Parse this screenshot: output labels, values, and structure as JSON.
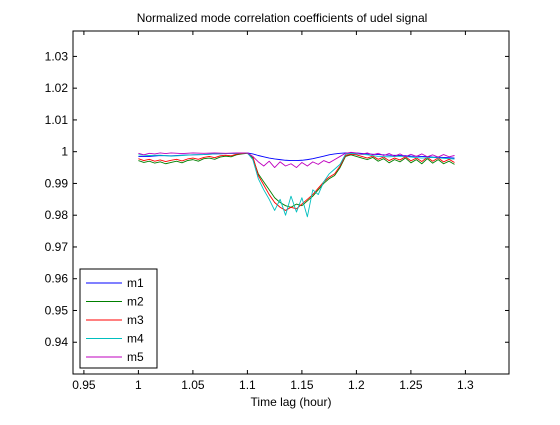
{
  "chart_data": {
    "type": "line",
    "title": "Normalized mode correlation coefficients of udel signal",
    "xlabel": "Time lag (hour)",
    "ylabel": "",
    "xlim": [
      0.94,
      1.34
    ],
    "ylim": [
      0.93,
      1.038
    ],
    "xticks": [
      0.95,
      1,
      1.05,
      1.1,
      1.15,
      1.2,
      1.25,
      1.3
    ],
    "xtick_labels": [
      "0.95",
      "1",
      "1.05",
      "1.1",
      "1.15",
      "1.2",
      "1.25",
      "1.3"
    ],
    "yticks": [
      0.94,
      0.95,
      0.96,
      0.97,
      0.98,
      0.99,
      1,
      1.01,
      1.02,
      1.03
    ],
    "ytick_labels": [
      "0.94",
      "0.95",
      "0.96",
      "0.97",
      "0.98",
      "0.99",
      "1",
      "1.01",
      "1.02",
      "1.03"
    ],
    "grid": false,
    "legend_position": "bottom-left",
    "series": [
      {
        "name": "m1",
        "color": "#0000ff",
        "points": [
          [
            1.0,
            0.9985
          ],
          [
            1.01,
            0.9985
          ],
          [
            1.02,
            0.9988
          ],
          [
            1.03,
            0.9987
          ],
          [
            1.04,
            0.9989
          ],
          [
            1.05,
            0.999
          ],
          [
            1.06,
            0.9991
          ],
          [
            1.07,
            0.9993
          ],
          [
            1.08,
            0.9994
          ],
          [
            1.09,
            0.9995
          ],
          [
            1.1,
            0.9996
          ],
          [
            1.105,
            0.9993
          ],
          [
            1.11,
            0.9988
          ],
          [
            1.115,
            0.9984
          ],
          [
            1.12,
            0.998
          ],
          [
            1.125,
            0.9977
          ],
          [
            1.13,
            0.9975
          ],
          [
            1.135,
            0.9973
          ],
          [
            1.14,
            0.9972
          ],
          [
            1.145,
            0.9972
          ],
          [
            1.15,
            0.9973
          ],
          [
            1.155,
            0.9975
          ],
          [
            1.16,
            0.9978
          ],
          [
            1.165,
            0.9982
          ],
          [
            1.17,
            0.9986
          ],
          [
            1.175,
            0.999
          ],
          [
            1.18,
            0.9993
          ],
          [
            1.185,
            0.9995
          ],
          [
            1.19,
            0.9996
          ],
          [
            1.2,
            0.9996
          ],
          [
            1.21,
            0.9993
          ],
          [
            1.22,
            0.9991
          ],
          [
            1.23,
            0.9989
          ],
          [
            1.24,
            0.9988
          ],
          [
            1.25,
            0.9986
          ],
          [
            1.26,
            0.9985
          ],
          [
            1.27,
            0.9983
          ],
          [
            1.28,
            0.9982
          ],
          [
            1.29,
            0.998
          ]
        ]
      },
      {
        "name": "m2",
        "color": "#008000",
        "points": [
          [
            1.0,
            0.9972
          ],
          [
            1.005,
            0.9966
          ],
          [
            1.01,
            0.997
          ],
          [
            1.015,
            0.9964
          ],
          [
            1.02,
            0.9968
          ],
          [
            1.025,
            0.9962
          ],
          [
            1.03,
            0.9966
          ],
          [
            1.035,
            0.997
          ],
          [
            1.04,
            0.9965
          ],
          [
            1.045,
            0.9972
          ],
          [
            1.05,
            0.9975
          ],
          [
            1.055,
            0.997
          ],
          [
            1.06,
            0.9978
          ],
          [
            1.065,
            0.998
          ],
          [
            1.07,
            0.9976
          ],
          [
            1.075,
            0.9983
          ],
          [
            1.08,
            0.9986
          ],
          [
            1.085,
            0.9984
          ],
          [
            1.09,
            0.999
          ],
          [
            1.095,
            0.9993
          ],
          [
            1.1,
            0.9995
          ],
          [
            1.105,
            0.998
          ],
          [
            1.11,
            0.993
          ],
          [
            1.115,
            0.9905
          ],
          [
            1.12,
            0.988
          ],
          [
            1.125,
            0.9855
          ],
          [
            1.13,
            0.984
          ],
          [
            1.135,
            0.983
          ],
          [
            1.14,
            0.9825
          ],
          [
            1.145,
            0.9835
          ],
          [
            1.15,
            0.983
          ],
          [
            1.155,
            0.9845
          ],
          [
            1.16,
            0.986
          ],
          [
            1.165,
            0.988
          ],
          [
            1.17,
            0.99
          ],
          [
            1.175,
            0.9915
          ],
          [
            1.18,
            0.9925
          ],
          [
            1.185,
            0.995
          ],
          [
            1.19,
            0.9985
          ],
          [
            1.195,
            0.999
          ],
          [
            1.2,
            0.9985
          ],
          [
            1.205,
            0.998
          ],
          [
            1.21,
            0.9975
          ],
          [
            1.215,
            0.9982
          ],
          [
            1.22,
            0.997
          ],
          [
            1.225,
            0.9978
          ],
          [
            1.23,
            0.9965
          ],
          [
            1.235,
            0.9975
          ],
          [
            1.24,
            0.9968
          ],
          [
            1.245,
            0.998
          ],
          [
            1.25,
            0.9965
          ],
          [
            1.255,
            0.9975
          ],
          [
            1.26,
            0.9962
          ],
          [
            1.265,
            0.9978
          ],
          [
            1.27,
            0.9964
          ],
          [
            1.275,
            0.9975
          ],
          [
            1.28,
            0.9962
          ],
          [
            1.285,
            0.997
          ],
          [
            1.29,
            0.996
          ]
        ]
      },
      {
        "name": "m3",
        "color": "#ff0000",
        "points": [
          [
            1.0,
            0.9978
          ],
          [
            1.005,
            0.9972
          ],
          [
            1.01,
            0.9976
          ],
          [
            1.015,
            0.997
          ],
          [
            1.02,
            0.9974
          ],
          [
            1.025,
            0.9969
          ],
          [
            1.03,
            0.9973
          ],
          [
            1.035,
            0.9976
          ],
          [
            1.04,
            0.9971
          ],
          [
            1.045,
            0.9977
          ],
          [
            1.05,
            0.998
          ],
          [
            1.055,
            0.9976
          ],
          [
            1.06,
            0.9982
          ],
          [
            1.065,
            0.9985
          ],
          [
            1.07,
            0.9981
          ],
          [
            1.075,
            0.9987
          ],
          [
            1.08,
            0.9989
          ],
          [
            1.085,
            0.9987
          ],
          [
            1.09,
            0.9992
          ],
          [
            1.095,
            0.9994
          ],
          [
            1.1,
            0.9996
          ],
          [
            1.105,
            0.9985
          ],
          [
            1.11,
            0.9925
          ],
          [
            1.115,
            0.9895
          ],
          [
            1.12,
            0.9865
          ],
          [
            1.125,
            0.984
          ],
          [
            1.13,
            0.9825
          ],
          [
            1.135,
            0.9815
          ],
          [
            1.14,
            0.9825
          ],
          [
            1.145,
            0.982
          ],
          [
            1.15,
            0.9835
          ],
          [
            1.155,
            0.985
          ],
          [
            1.16,
            0.9865
          ],
          [
            1.165,
            0.9885
          ],
          [
            1.17,
            0.9905
          ],
          [
            1.175,
            0.992
          ],
          [
            1.18,
            0.993
          ],
          [
            1.185,
            0.9955
          ],
          [
            1.19,
            0.9988
          ],
          [
            1.195,
            0.9992
          ],
          [
            1.2,
            0.999
          ],
          [
            1.205,
            0.9985
          ],
          [
            1.21,
            0.998
          ],
          [
            1.215,
            0.9986
          ],
          [
            1.22,
            0.9976
          ],
          [
            1.225,
            0.9983
          ],
          [
            1.23,
            0.9972
          ],
          [
            1.235,
            0.998
          ],
          [
            1.24,
            0.9974
          ],
          [
            1.245,
            0.9984
          ],
          [
            1.25,
            0.9971
          ],
          [
            1.255,
            0.998
          ],
          [
            1.26,
            0.9969
          ],
          [
            1.265,
            0.9982
          ],
          [
            1.27,
            0.997
          ],
          [
            1.275,
            0.998
          ],
          [
            1.28,
            0.9968
          ],
          [
            1.285,
            0.9976
          ],
          [
            1.29,
            0.9966
          ]
        ]
      },
      {
        "name": "m4",
        "color": "#00bfbf",
        "points": [
          [
            1.0,
            0.999
          ],
          [
            1.01,
            0.9988
          ],
          [
            1.02,
            0.9989
          ],
          [
            1.03,
            0.9986
          ],
          [
            1.04,
            0.9988
          ],
          [
            1.05,
            0.999
          ],
          [
            1.06,
            0.9991
          ],
          [
            1.07,
            0.9993
          ],
          [
            1.08,
            0.9994
          ],
          [
            1.09,
            0.9995
          ],
          [
            1.1,
            0.9996
          ],
          [
            1.105,
            0.9975
          ],
          [
            1.11,
            0.9915
          ],
          [
            1.115,
            0.988
          ],
          [
            1.12,
            0.985
          ],
          [
            1.125,
            0.9815
          ],
          [
            1.13,
            0.985
          ],
          [
            1.135,
            0.98
          ],
          [
            1.14,
            0.986
          ],
          [
            1.145,
            0.981
          ],
          [
            1.15,
            0.9855
          ],
          [
            1.155,
            0.9795
          ],
          [
            1.16,
            0.988
          ],
          [
            1.165,
            0.9865
          ],
          [
            1.17,
            0.9905
          ],
          [
            1.175,
            0.993
          ],
          [
            1.18,
            0.9945
          ],
          [
            1.185,
            0.996
          ],
          [
            1.19,
            0.9992
          ],
          [
            1.195,
            0.9995
          ],
          [
            1.2,
            0.9993
          ],
          [
            1.21,
            0.999
          ],
          [
            1.22,
            0.9985
          ],
          [
            1.23,
            0.9984
          ],
          [
            1.24,
            0.9986
          ],
          [
            1.25,
            0.9983
          ],
          [
            1.26,
            0.998
          ],
          [
            1.27,
            0.9982
          ],
          [
            1.28,
            0.9979
          ],
          [
            1.29,
            0.9977
          ]
        ]
      },
      {
        "name": "m5",
        "color": "#bf00bf",
        "points": [
          [
            1.0,
            0.9995
          ],
          [
            1.005,
            0.999
          ],
          [
            1.01,
            0.9995
          ],
          [
            1.015,
            0.9993
          ],
          [
            1.02,
            0.9996
          ],
          [
            1.025,
            0.9994
          ],
          [
            1.03,
            0.9996
          ],
          [
            1.04,
            0.9994
          ],
          [
            1.05,
            0.9996
          ],
          [
            1.06,
            0.9995
          ],
          [
            1.07,
            0.9996
          ],
          [
            1.08,
            0.9995
          ],
          [
            1.09,
            0.9996
          ],
          [
            1.1,
            0.9996
          ],
          [
            1.105,
            0.9985
          ],
          [
            1.11,
            0.9968
          ],
          [
            1.115,
            0.9955
          ],
          [
            1.12,
            0.997
          ],
          [
            1.125,
            0.995
          ],
          [
            1.13,
            0.9968
          ],
          [
            1.135,
            0.9955
          ],
          [
            1.14,
            0.9962
          ],
          [
            1.145,
            0.995
          ],
          [
            1.15,
            0.9966
          ],
          [
            1.155,
            0.9955
          ],
          [
            1.16,
            0.9968
          ],
          [
            1.165,
            0.996
          ],
          [
            1.17,
            0.9972
          ],
          [
            1.175,
            0.9965
          ],
          [
            1.18,
            0.9975
          ],
          [
            1.185,
            0.9985
          ],
          [
            1.19,
            0.9995
          ],
          [
            1.195,
            0.9998
          ],
          [
            1.2,
            0.9996
          ],
          [
            1.205,
            0.9992
          ],
          [
            1.21,
            0.9996
          ],
          [
            1.215,
            0.999
          ],
          [
            1.22,
            0.9995
          ],
          [
            1.225,
            0.9988
          ],
          [
            1.23,
            0.9994
          ],
          [
            1.235,
            0.9986
          ],
          [
            1.24,
            0.9993
          ],
          [
            1.245,
            0.9984
          ],
          [
            1.25,
            0.9992
          ],
          [
            1.255,
            0.9985
          ],
          [
            1.26,
            0.9993
          ],
          [
            1.265,
            0.9984
          ],
          [
            1.27,
            0.999
          ],
          [
            1.275,
            0.9983
          ],
          [
            1.28,
            0.9991
          ],
          [
            1.285,
            0.9984
          ],
          [
            1.29,
            0.9988
          ]
        ]
      }
    ]
  }
}
